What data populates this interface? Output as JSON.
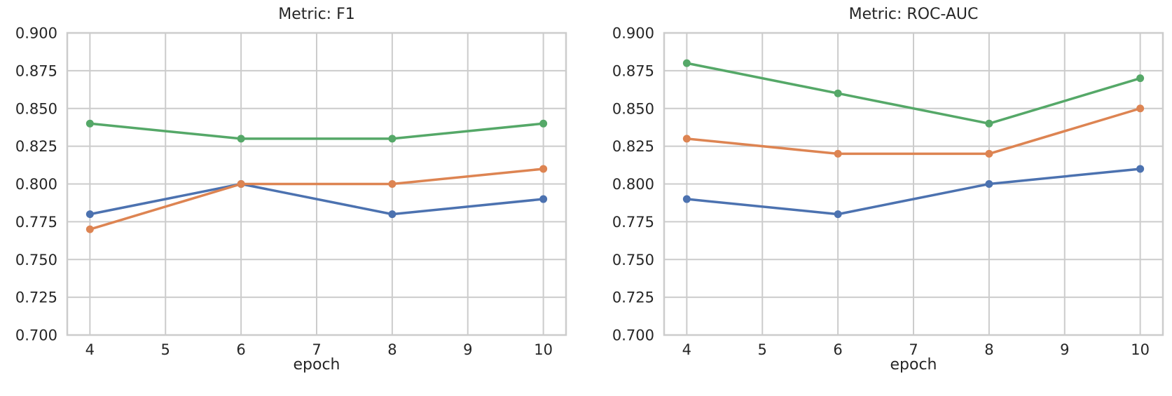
{
  "figure": {
    "background": "#ffffff",
    "grid_color": "#cccccc",
    "spine_color": "#cccccc",
    "text_color": "#262626"
  },
  "chart_data": [
    {
      "type": "line",
      "title": "Metric: F1",
      "xlabel": "epoch",
      "ylabel": "",
      "x": [
        4,
        6,
        8,
        10
      ],
      "xticks": [
        "4",
        "5",
        "6",
        "7",
        "8",
        "9",
        "10"
      ],
      "yticks": [
        "0.900",
        "0.875",
        "0.850",
        "0.825",
        "0.800",
        "0.775",
        "0.750",
        "0.725",
        "0.700"
      ],
      "ylim": [
        0.7,
        0.9
      ],
      "xlim": [
        3.7,
        10.3
      ],
      "grid": true,
      "legend": "none",
      "series": [
        {
          "name": "blue",
          "color": "#4C72B0",
          "values": [
            0.78,
            0.8,
            0.78,
            0.79
          ]
        },
        {
          "name": "orange",
          "color": "#DD8452",
          "values": [
            0.77,
            0.8,
            0.8,
            0.81
          ]
        },
        {
          "name": "green",
          "color": "#55A868",
          "values": [
            0.84,
            0.83,
            0.83,
            0.84
          ]
        }
      ]
    },
    {
      "type": "line",
      "title": "Metric: ROC-AUC",
      "xlabel": "epoch",
      "ylabel": "",
      "x": [
        4,
        6,
        8,
        10
      ],
      "xticks": [
        "4",
        "5",
        "6",
        "7",
        "8",
        "9",
        "10"
      ],
      "yticks": [
        "0.900",
        "0.875",
        "0.850",
        "0.825",
        "0.800",
        "0.775",
        "0.750",
        "0.725",
        "0.700"
      ],
      "ylim": [
        0.7,
        0.9
      ],
      "xlim": [
        3.7,
        10.3
      ],
      "grid": true,
      "legend": "none",
      "series": [
        {
          "name": "blue",
          "color": "#4C72B0",
          "values": [
            0.79,
            0.78,
            0.8,
            0.81
          ]
        },
        {
          "name": "orange",
          "color": "#DD8452",
          "values": [
            0.83,
            0.82,
            0.82,
            0.85
          ]
        },
        {
          "name": "green",
          "color": "#55A868",
          "values": [
            0.88,
            0.86,
            0.84,
            0.87
          ]
        }
      ]
    }
  ]
}
